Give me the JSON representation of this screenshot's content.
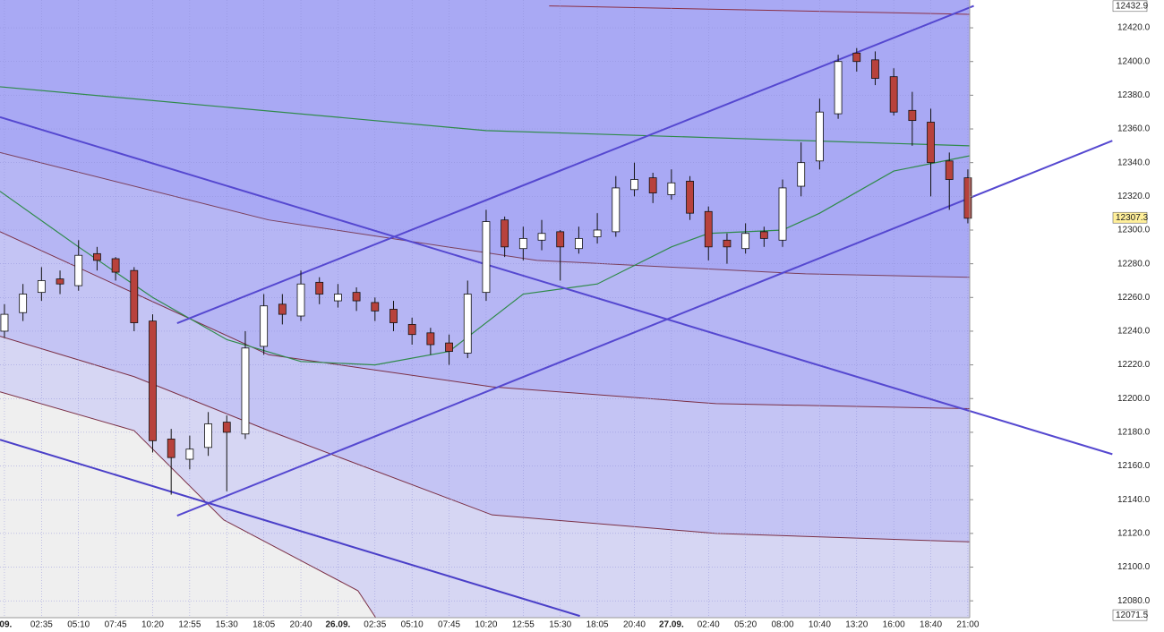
{
  "chart_data": {
    "type": "candlestick",
    "ylim": [
      12070,
      12436.5
    ],
    "xlim": [
      -0.12,
      26.05
    ],
    "yticks": [
      {
        "value": 12080,
        "label": "12080.0"
      },
      {
        "value": 12100,
        "label": "12100.0"
      },
      {
        "value": 12120,
        "label": "12120.0"
      },
      {
        "value": 12140,
        "label": "12140.0"
      },
      {
        "value": 12160,
        "label": "12160.0"
      },
      {
        "value": 12180,
        "label": "12180.0"
      },
      {
        "value": 12200,
        "label": "12200.0"
      },
      {
        "value": 12220,
        "label": "12220.0"
      },
      {
        "value": 12240,
        "label": "12240.0"
      },
      {
        "value": 12260,
        "label": "12260.0"
      },
      {
        "value": 12280,
        "label": "12280.0"
      },
      {
        "value": 12300,
        "label": "12300.0"
      },
      {
        "value": 12320,
        "label": "12320.0"
      },
      {
        "value": 12340,
        "label": "12340.0"
      },
      {
        "value": 12360,
        "label": "12360.0"
      },
      {
        "value": 12380,
        "label": "12380.0"
      },
      {
        "value": 12400,
        "label": "12400.0"
      },
      {
        "value": 12420,
        "label": "12420.0"
      }
    ],
    "xticks": [
      {
        "value": 0,
        "label": ".09."
      },
      {
        "value": 1,
        "label": "02:35"
      },
      {
        "value": 2,
        "label": "05:10"
      },
      {
        "value": 3,
        "label": "07:45"
      },
      {
        "value": 4,
        "label": "10:20"
      },
      {
        "value": 5,
        "label": "12:55"
      },
      {
        "value": 6,
        "label": "15:30"
      },
      {
        "value": 7,
        "label": "18:05"
      },
      {
        "value": 8,
        "label": "20:40"
      },
      {
        "value": 9,
        "label": "26.09."
      },
      {
        "value": 10,
        "label": "02:35"
      },
      {
        "value": 11,
        "label": "05:10"
      },
      {
        "value": 12,
        "label": "07:45"
      },
      {
        "value": 13,
        "label": "10:20"
      },
      {
        "value": 14,
        "label": "12:55"
      },
      {
        "value": 15,
        "label": "15:30"
      },
      {
        "value": 16,
        "label": "18:05"
      },
      {
        "value": 17,
        "label": "20:40"
      },
      {
        "value": 18,
        "label": "27.09."
      },
      {
        "value": 19,
        "label": "02:40"
      },
      {
        "value": 20,
        "label": "05:20"
      },
      {
        "value": 21,
        "label": "08:00"
      },
      {
        "value": 22,
        "label": "10:40"
      },
      {
        "value": 23,
        "label": "13:20"
      },
      {
        "value": 24,
        "label": "16:00"
      },
      {
        "value": 25,
        "label": "18:40"
      },
      {
        "value": 26,
        "label": "21:00"
      }
    ],
    "grid": true,
    "ymax_label": 12432.9,
    "ymin_label": 12071.5,
    "last_price": 12307.3,
    "up_color": "#ffffff",
    "down_color": "#b8423c",
    "plot_color": "#a9a9f4",
    "x": [
      0,
      0.5,
      1,
      1.5,
      2,
      2.5,
      3,
      3.5,
      4,
      4.5,
      5,
      5.5,
      6,
      6.5,
      7,
      7.5,
      8,
      8.5,
      9,
      9.5,
      10,
      10.5,
      11,
      11.5,
      12,
      12.5,
      13,
      13.5,
      14,
      14.5,
      15,
      15.5,
      16,
      16.5,
      17,
      17.5,
      18,
      18.5,
      19,
      19.5,
      20,
      20.5,
      21,
      21.5,
      22,
      22.5,
      23,
      23.5,
      24,
      24.5,
      25,
      25.5,
      26
    ],
    "open": [
      12240,
      12251,
      12263,
      12271,
      12267,
      12286,
      12283,
      12276,
      12246,
      12176,
      12164,
      12171,
      12186,
      12179,
      12231,
      12256,
      12249,
      12269,
      12258,
      12263,
      12257,
      12253,
      12244,
      12239,
      12233,
      12227,
      12263,
      12306,
      12289,
      12294,
      12299,
      12289,
      12296,
      12299,
      12324,
      12331,
      12321,
      12329,
      12311,
      12294,
      12289,
      12299,
      12294,
      12326,
      12341,
      12369,
      12405,
      12401,
      12391,
      12371,
      12364,
      12341,
      12331
    ],
    "high": [
      12256,
      12268,
      12278,
      12276,
      12294,
      12290,
      12284,
      12278,
      12250,
      12182,
      12178,
      12192,
      12190,
      12240,
      12262,
      12262,
      12276,
      12272,
      12268,
      12266,
      12260,
      12258,
      12248,
      12242,
      12238,
      12270,
      12312,
      12308,
      12302,
      12306,
      12300,
      12302,
      12310,
      12332,
      12340,
      12334,
      12336,
      12332,
      12314,
      12298,
      12304,
      12302,
      12330,
      12352,
      12378,
      12404,
      12408,
      12406,
      12396,
      12382,
      12372,
      12346,
      12336
    ],
    "low": [
      12236,
      12246,
      12258,
      12262,
      12264,
      12276,
      12270,
      12240,
      12168,
      12143,
      12158,
      12166,
      12145,
      12176,
      12226,
      12244,
      12246,
      12256,
      12254,
      12252,
      12246,
      12240,
      12232,
      12226,
      12220,
      12224,
      12258,
      12284,
      12282,
      12288,
      12270,
      12286,
      12292,
      12296,
      12320,
      12316,
      12318,
      12306,
      12282,
      12280,
      12286,
      12290,
      12290,
      12320,
      12336,
      12366,
      12394,
      12386,
      12368,
      12350,
      12320,
      12312,
      12304
    ],
    "close": [
      12250,
      12262,
      12270,
      12268,
      12285,
      12282,
      12275,
      12245,
      12175,
      12165,
      12170,
      12185,
      12180,
      12230,
      12255,
      12250,
      12268,
      12262,
      12262,
      12258,
      12252,
      12245,
      12238,
      12232,
      12228,
      12262,
      12305,
      12290,
      12295,
      12298,
      12290,
      12295,
      12300,
      12325,
      12330,
      12322,
      12328,
      12310,
      12290,
      12290,
      12298,
      12295,
      12325,
      12340,
      12370,
      12400,
      12400,
      12390,
      12370,
      12365,
      12340,
      12330,
      12307
    ],
    "bands": [
      {
        "color": "#7a3f5c",
        "fill": "#b6b6f4",
        "x": [
          -0.12,
          7.13,
          14.37,
          21.62,
          26.04
        ],
        "y": [
          12346,
          12306,
          12282,
          12274,
          12272
        ]
      },
      {
        "color": "#7a2f45",
        "fill": "#c4c4f4",
        "x": [
          -0.12,
          7.13,
          13.16,
          19.2,
          26.04
        ],
        "y": [
          12299,
          12226,
          12207,
          12197,
          12194
        ]
      },
      {
        "color": "#7a2f45",
        "fill": "#d6d6f3",
        "x": [
          -0.12,
          3.5,
          7.13,
          13.16,
          19.2,
          26.04
        ],
        "y": [
          12237,
          12213,
          12181,
          12131,
          12120,
          12115
        ]
      },
      {
        "color": "#7a2f45",
        "fill": "#efefef",
        "x": [
          -0.12,
          3.5,
          5.92,
          9.54,
          10.02
        ],
        "y": [
          12204,
          12181,
          12128,
          12086,
          12070
        ]
      },
      {
        "color": "#8a2f45",
        "fill": "none",
        "x": [
          14.7,
          26.04
        ],
        "y": [
          12433,
          12428
        ]
      }
    ],
    "overlays": [
      {
        "color": "#2f8a4a",
        "x": [
          -0.12,
          13,
          26.04
        ],
        "y": [
          12385,
          12359,
          12350
        ]
      },
      {
        "color": "#2f8a4a",
        "x": [
          -0.12,
          2,
          4,
          6,
          8,
          10,
          12,
          14,
          16,
          18,
          19,
          21,
          22,
          24,
          26.04
        ],
        "y": [
          12323,
          12290,
          12260,
          12235,
          12222,
          12220,
          12228,
          12262,
          12268,
          12290,
          12298,
          12300,
          12310,
          12335,
          12344
        ]
      },
      {
        "color": "#5548d0",
        "x": [
          4.66,
          26.16
        ],
        "y": [
          12244.7,
          12433
        ]
      },
      {
        "color": "#5548d0",
        "x": [
          4.66,
          29.9
        ],
        "y": [
          12130.5,
          12353
        ]
      },
      {
        "color": "#5548d0",
        "x": [
          -0.12,
          29.9
        ],
        "y": [
          12367,
          12167
        ]
      },
      {
        "color": "#4a3fc8",
        "x": [
          -0.12,
          15.53
        ],
        "y": [
          12175.6,
          12071
        ]
      }
    ]
  }
}
